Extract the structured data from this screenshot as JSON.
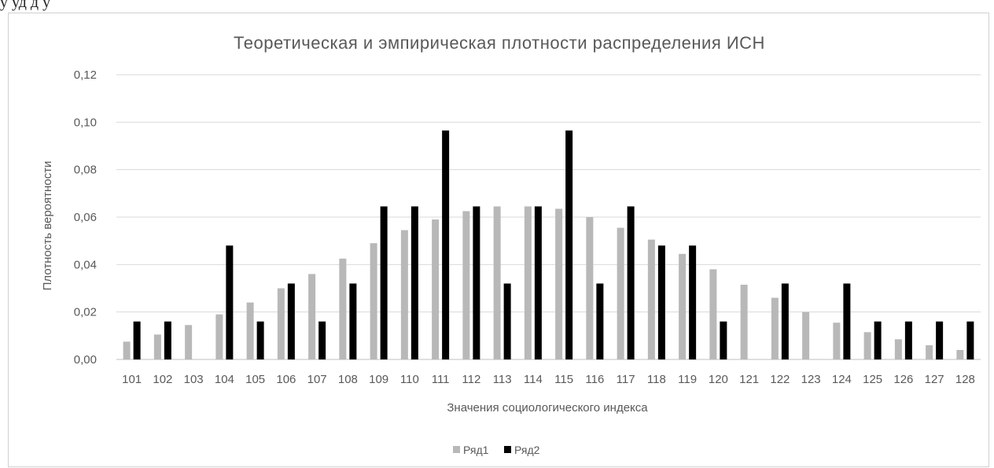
{
  "top_text": "у уд         д                                         у",
  "chart_data": {
    "type": "bar",
    "title": "Теоретическая и эмпирическая плотности распределения ИСН",
    "xlabel": "Значения социологического индекса",
    "ylabel": "Плотность вероятности",
    "ylim": [
      0,
      0.12
    ],
    "yticks": [
      "0,00",
      "0,02",
      "0,04",
      "0,06",
      "0,08",
      "0,10",
      "0,12"
    ],
    "grid": true,
    "legend_position": "bottom",
    "categories": [
      "101",
      "102",
      "103",
      "104",
      "105",
      "106",
      "107",
      "108",
      "109",
      "110",
      "111",
      "112",
      "113",
      "114",
      "115",
      "116",
      "117",
      "118",
      "119",
      "120",
      "121",
      "122",
      "123",
      "124",
      "125",
      "126",
      "127",
      "128"
    ],
    "series": [
      {
        "name": "Ряд1",
        "color": "#b8b8b8",
        "values": [
          0.0075,
          0.0105,
          0.0145,
          0.019,
          0.024,
          0.03,
          0.036,
          0.0425,
          0.049,
          0.0545,
          0.059,
          0.0625,
          0.0645,
          0.0645,
          0.0635,
          0.06,
          0.0555,
          0.0505,
          0.0445,
          0.038,
          0.0315,
          0.026,
          0.02,
          0.0155,
          0.0115,
          0.0085,
          0.006,
          0.004
        ]
      },
      {
        "name": "Ряд2",
        "color": "#000000",
        "values": [
          0.016,
          0.016,
          0,
          0.048,
          0.016,
          0.032,
          0.016,
          0.032,
          0.0645,
          0.0645,
          0.0965,
          0.0645,
          0.032,
          0.0645,
          0.0965,
          0.032,
          0.0645,
          0.048,
          0.048,
          0.016,
          0,
          0.032,
          0,
          0.032,
          0.016,
          0.016,
          0.016,
          0.016
        ]
      }
    ]
  }
}
